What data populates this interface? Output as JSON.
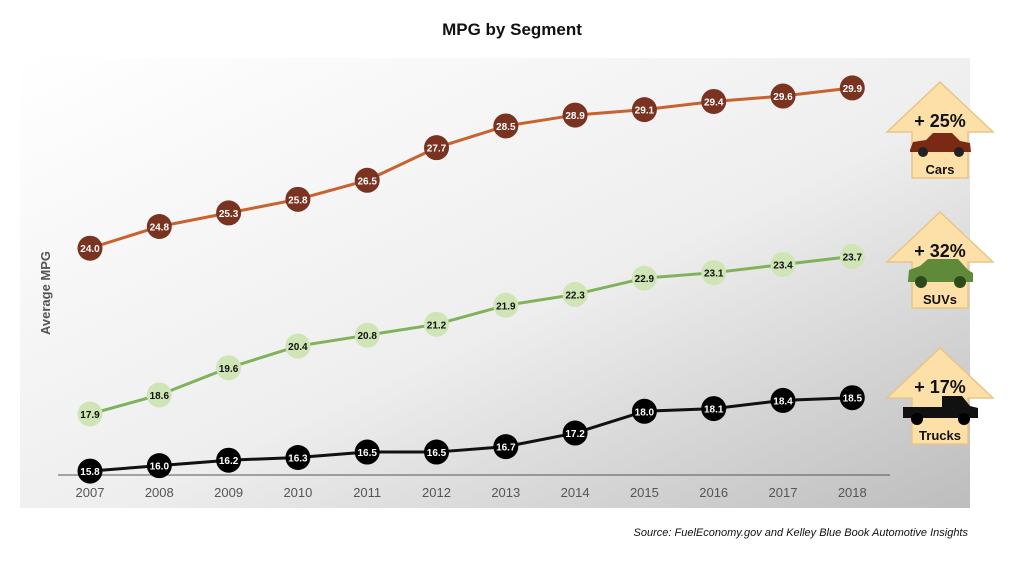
{
  "chart_data": {
    "type": "line",
    "title": "MPG by Segment",
    "ylabel": "Average MPG",
    "xlabel": "",
    "x": [
      "2007",
      "2008",
      "2009",
      "2010",
      "2011",
      "2012",
      "2013",
      "2014",
      "2015",
      "2016",
      "2017",
      "2018"
    ],
    "ylim": [
      14,
      31
    ],
    "grid": false,
    "series": [
      {
        "name": "Cars",
        "color": "#c8622f",
        "marker_color": "#7a3320",
        "label_color": "#ffffff",
        "values": [
          24.0,
          24.8,
          25.3,
          25.8,
          26.5,
          27.7,
          28.5,
          28.9,
          29.1,
          29.4,
          29.6,
          29.9
        ]
      },
      {
        "name": "SUVs",
        "color": "#7fb25a",
        "marker_color": "#cfe5b5",
        "label_color": "#111111",
        "values": [
          17.9,
          18.6,
          19.6,
          20.4,
          20.8,
          21.2,
          21.9,
          22.3,
          22.9,
          23.1,
          23.4,
          23.7
        ]
      },
      {
        "name": "Trucks",
        "color": "#111111",
        "marker_color": "#000000",
        "label_color": "#ffffff",
        "values": [
          15.8,
          16.0,
          16.2,
          16.3,
          16.5,
          16.5,
          16.7,
          17.2,
          18.0,
          18.1,
          18.4,
          18.5
        ]
      }
    ],
    "callouts": [
      {
        "change": "+ 25%",
        "label": "Cars",
        "icon": "car-icon"
      },
      {
        "change": "+ 32%",
        "label": "SUVs",
        "icon": "suv-icon"
      },
      {
        "change": "+ 17%",
        "label": "Trucks",
        "icon": "truck-icon"
      }
    ]
  },
  "source": "Source: FuelEconomy.gov and Kelley Blue Book Automotive Insights",
  "colors": {
    "arrow_fill": "#fde0a8",
    "arrow_stroke": "#e9c487"
  }
}
